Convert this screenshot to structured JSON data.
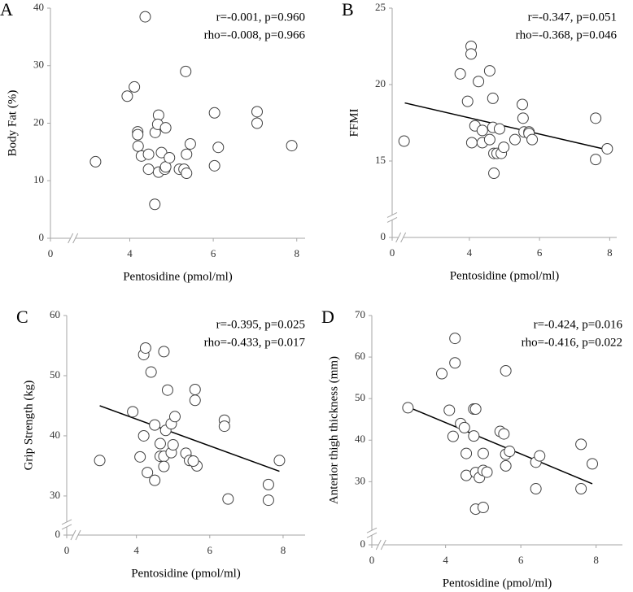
{
  "chart_data": [
    {
      "type": "scatter",
      "label": "A",
      "x_label": "Pentosidine (pmol/ml)",
      "y_label": "Body Fat (%)",
      "annotations": [
        "r=-0.001, p=0.960",
        "rho=-0.008, p=0.966"
      ],
      "xlim": [
        0,
        8.2
      ],
      "xbreak": [
        0.5,
        2.6
      ],
      "xticks": [
        0,
        4,
        6,
        8
      ],
      "ylim": [
        0,
        40
      ],
      "yticks": [
        0,
        10,
        20,
        30,
        40
      ],
      "marker_color": "#ffffff",
      "edge_color": "#404040",
      "x": [
        3.18,
        3.94,
        4.11,
        4.37,
        4.19,
        4.19,
        4.2,
        4.28,
        4.45,
        4.45,
        4.6,
        4.61,
        4.69,
        4.67,
        4.69,
        4.76,
        4.86,
        4.84,
        4.86,
        4.95,
        5.19,
        5.3,
        5.36,
        5.36,
        5.34,
        5.45,
        6.03,
        6.03,
        6.12,
        7.05,
        7.05,
        7.88
      ],
      "values": [
        13.3,
        24.7,
        26.3,
        38.5,
        18.5,
        18.0,
        16.0,
        14.3,
        12.0,
        14.6,
        5.9,
        18.4,
        21.4,
        19.8,
        11.5,
        14.9,
        19.2,
        12.0,
        12.4,
        14.0,
        12.0,
        12.0,
        14.6,
        11.3,
        29.0,
        16.4,
        21.8,
        12.6,
        15.8,
        22.0,
        20.0,
        16.1
      ]
    },
    {
      "type": "scatter",
      "label": "B",
      "x_label": "Pentosidine (pmol/ml)",
      "y_label": "FFMI",
      "annotations": [
        "r=-0.347, p=0.051",
        "rho=-0.368, p=0.046"
      ],
      "xlim": [
        0,
        8.2
      ],
      "xbreak": [
        0.2,
        2.0
      ],
      "xticks": [
        0,
        4,
        6,
        8
      ],
      "ylim": [
        0,
        25
      ],
      "ybreak": [
        1.2,
        11.2
      ],
      "yticks": [
        0,
        15,
        20,
        25
      ],
      "marker_color": "#ffffff",
      "edge_color": "#404040",
      "trend_color": "#000000",
      "x": [
        2.14,
        3.74,
        3.95,
        4.05,
        4.05,
        4.16,
        4.07,
        4.26,
        4.37,
        4.37,
        4.58,
        4.58,
        4.67,
        4.67,
        4.7,
        4.7,
        4.79,
        4.86,
        4.91,
        4.98,
        5.3,
        5.51,
        5.53,
        5.56,
        5.7,
        5.7,
        5.79,
        7.6,
        7.6,
        7.93
      ],
      "values": [
        16.3,
        20.7,
        18.9,
        22.5,
        22.0,
        17.3,
        16.2,
        20.2,
        17.0,
        16.2,
        20.9,
        16.4,
        19.1,
        17.2,
        15.5,
        14.2,
        15.5,
        17.1,
        15.5,
        15.9,
        16.4,
        18.7,
        17.8,
        16.9,
        16.9,
        16.8,
        16.4,
        17.8,
        15.1,
        15.8
      ],
      "trend_x": [
        2.16,
        8.0
      ],
      "trend_values": [
        18.8,
        15.7
      ]
    },
    {
      "type": "scatter",
      "label": "C",
      "x_label": "Pentosidine (pmol/ml)",
      "y_label": "Grip Strength (kg)",
      "annotations": [
        "r=-0.395, p=0.025",
        "rho=-0.433, p=0.017"
      ],
      "xlim": [
        0,
        8.6
      ],
      "xbreak": [
        0.2,
        2.3
      ],
      "xticks": [
        0,
        4,
        6,
        8
      ],
      "ylim": [
        0,
        60
      ],
      "ybreak": [
        1.5,
        25
      ],
      "yticks": [
        0,
        30,
        40,
        50,
        60
      ],
      "marker_color": "#ffffff",
      "edge_color": "#404040",
      "trend_color": "#000000",
      "x": [
        3.0,
        3.9,
        4.1,
        4.2,
        4.2,
        4.25,
        4.3,
        4.4,
        4.5,
        4.5,
        4.65,
        4.65,
        4.75,
        4.75,
        4.75,
        4.8,
        4.85,
        4.95,
        4.95,
        5.0,
        5.05,
        5.35,
        5.45,
        5.6,
        5.6,
        5.65,
        5.55,
        6.4,
        6.4,
        6.5,
        7.6,
        7.6,
        7.9
      ],
      "values": [
        35.9,
        44.0,
        36.5,
        40.0,
        53.5,
        54.6,
        33.9,
        50.6,
        41.8,
        32.6,
        38.7,
        36.6,
        54.0,
        36.6,
        34.9,
        40.9,
        47.6,
        42.0,
        37.2,
        38.5,
        43.2,
        37.1,
        35.9,
        47.7,
        45.9,
        35.0,
        35.8,
        42.6,
        41.6,
        29.5,
        31.9,
        29.3,
        35.9
      ],
      "trend_x": [
        3.0,
        7.9
      ],
      "trend_values": [
        45.0,
        34.1
      ]
    },
    {
      "type": "scatter",
      "label": "D",
      "x_label": "Pentosidine (pmol/ml)",
      "y_label": "Anterior thigh thickness (mm)",
      "annotations": [
        "r=-0.424, p=0.016",
        "rho=-0.416, p=0.022"
      ],
      "xlim": [
        0,
        8.7
      ],
      "xbreak": [
        0.2,
        2.24
      ],
      "xticks": [
        0,
        4,
        6,
        8
      ],
      "ylim": [
        0,
        70
      ],
      "ybreak": [
        2.5,
        17.3
      ],
      "yticks": [
        0,
        30,
        40,
        50,
        60,
        70
      ],
      "marker_color": "#ffffff",
      "edge_color": "#404040",
      "trend_color": "#000000",
      "x": [
        3.0,
        3.9,
        4.1,
        4.2,
        4.25,
        4.25,
        4.4,
        4.5,
        4.55,
        4.55,
        4.75,
        4.75,
        4.8,
        4.8,
        4.8,
        4.9,
        5.0,
        5.0,
        5.0,
        5.1,
        5.45,
        5.55,
        5.6,
        5.6,
        5.6,
        5.7,
        6.4,
        6.4,
        6.5,
        7.6,
        7.6,
        7.9
      ],
      "values": [
        47.8,
        56.0,
        47.2,
        40.9,
        58.6,
        64.5,
        44.0,
        43.0,
        36.8,
        31.5,
        47.5,
        41.0,
        47.5,
        32.2,
        23.4,
        31.0,
        36.8,
        32.7,
        23.8,
        32.3,
        42.1,
        41.5,
        56.7,
        36.6,
        33.8,
        37.3,
        34.7,
        28.3,
        36.2,
        39.0,
        28.3,
        34.3
      ],
      "trend_x": [
        3.0,
        7.9
      ],
      "trend_values": [
        48.0,
        29.5
      ]
    }
  ]
}
